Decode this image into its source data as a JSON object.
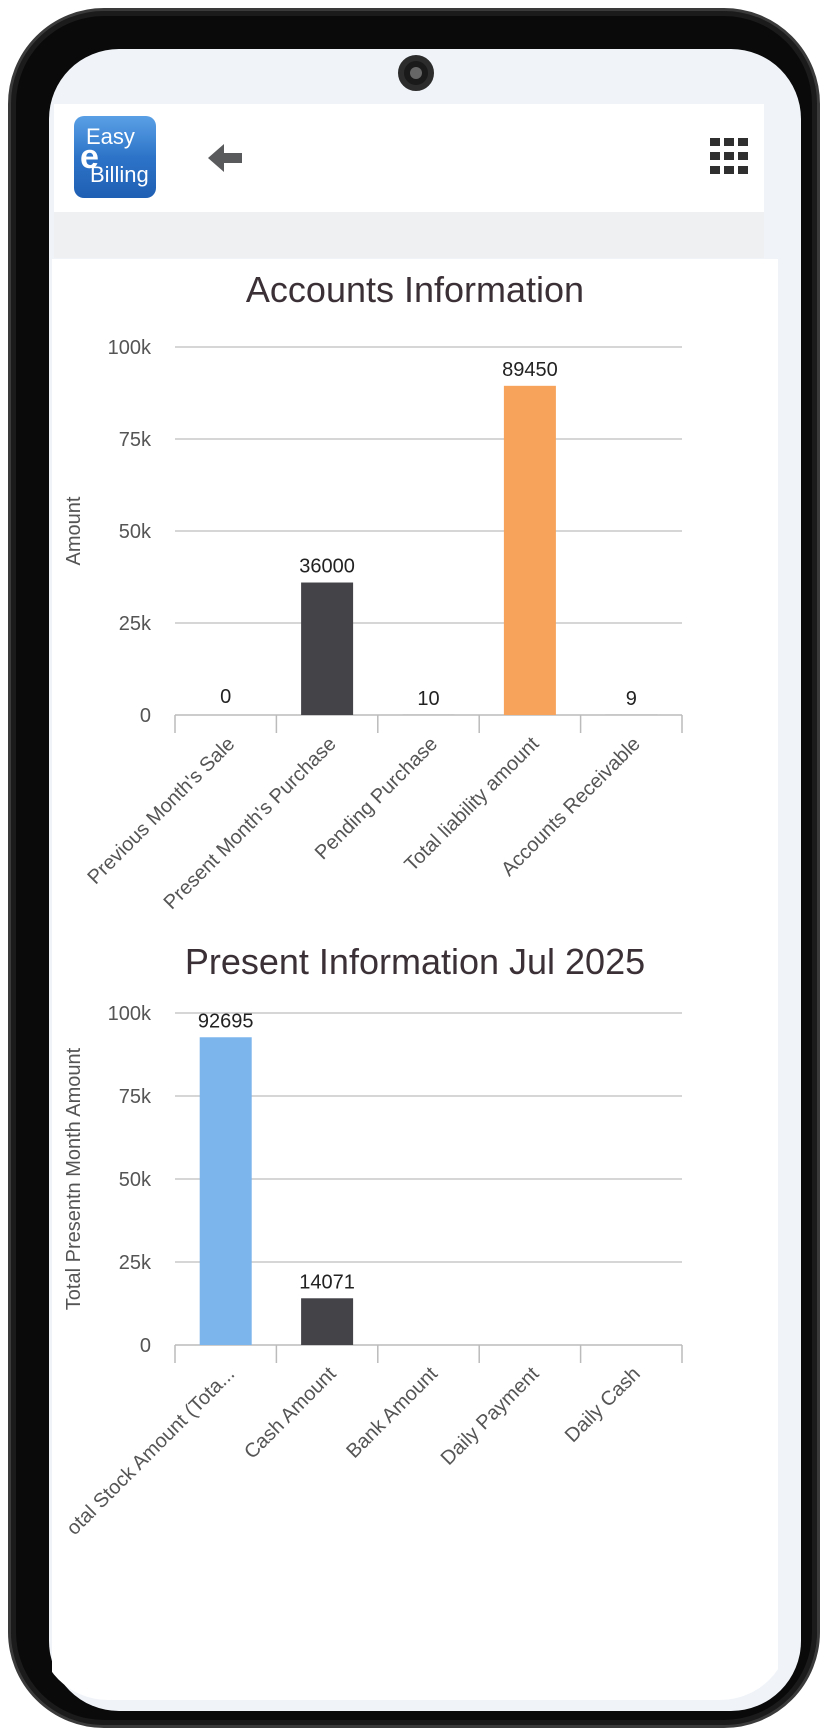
{
  "app": {
    "logo_line1": "Easy",
    "logo_mark": "e",
    "logo_line2": "Billing",
    "back_icon": "back-arrow-icon",
    "menu_icon": "grid-menu-icon"
  },
  "chart_data": [
    {
      "type": "bar",
      "title": "Accounts Information",
      "xlabel": "",
      "ylabel": "Amount",
      "categories": [
        "Previous Month's Sale",
        "Present Month's Purchase",
        "Pending Purchase",
        "Total liability amount",
        "Accounts Receivable"
      ],
      "values": [
        0,
        36000,
        10,
        89450,
        9
      ],
      "data_labels": [
        "0",
        "36000",
        "10",
        "89450",
        "9"
      ],
      "colors": [
        "#434348",
        "#434348",
        "#434348",
        "#f7a35c",
        "#434348"
      ],
      "ylim": [
        0,
        100000
      ],
      "yticks": [
        0,
        25000,
        50000,
        75000,
        100000
      ],
      "ytick_labels": [
        "0",
        "25k",
        "50k",
        "75k",
        "100k"
      ],
      "grid": true
    },
    {
      "type": "bar",
      "title": "Present Information Jul 2025",
      "xlabel": "",
      "ylabel": "Total Presentn Month Amount",
      "categories": [
        "Total Stock Amount (Tota...",
        "Cash Amount",
        "Bank Amount",
        "Daily Payment",
        "Daily Cash"
      ],
      "category_labels_visible": [
        "otal Stock Amount (Tota...",
        "Cash Amount",
        "Bank Amount",
        "Daily Payment",
        "Daily Cash"
      ],
      "values": [
        92695,
        14071,
        0,
        0,
        0
      ],
      "data_labels": [
        "92695",
        "14071",
        "",
        "",
        ""
      ],
      "colors": [
        "#7cb5ec",
        "#434348",
        "#434348",
        "#434348",
        "#434348"
      ],
      "ylim": [
        0,
        100000
      ],
      "yticks": [
        0,
        25000,
        50000,
        75000,
        100000
      ],
      "ytick_labels": [
        "0",
        "25k",
        "50k",
        "75k",
        "100k"
      ],
      "grid": true
    }
  ]
}
